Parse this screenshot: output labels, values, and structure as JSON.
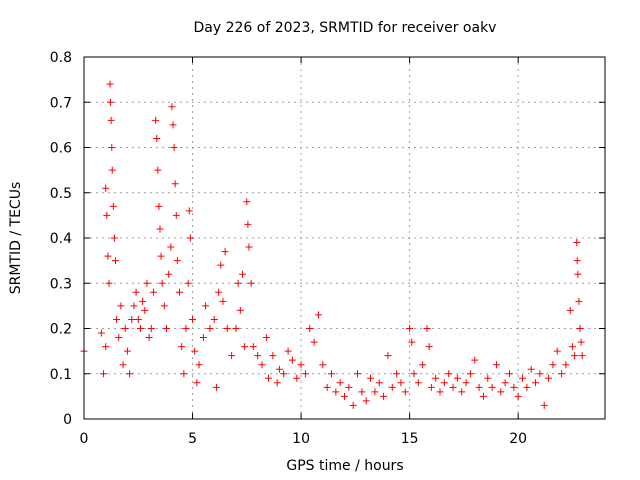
{
  "chart_data": {
    "type": "scatter",
    "title": "Day 226 of 2023, SRMTID for receiver oakv",
    "xlabel": "GPS time / hours",
    "ylabel": "SRMTID / TECUs",
    "xlim": [
      0,
      24
    ],
    "ylim": [
      0,
      0.8
    ],
    "x_ticks": [
      0,
      5,
      10,
      15,
      20
    ],
    "y_ticks": [
      0,
      0.1,
      0.2,
      0.3,
      0.4,
      0.5,
      0.6,
      0.7,
      0.8
    ],
    "x_tick_labels": [
      "0",
      "5",
      "10",
      "15",
      "20"
    ],
    "y_tick_labels": [
      "0",
      "0.1",
      "0.2",
      "0.3",
      "0.4",
      "0.5",
      "0.6",
      "0.7",
      "0.8"
    ],
    "grid": true,
    "marker": "+",
    "color": "#ff0000",
    "series": [
      {
        "name": "SRMTID",
        "points": [
          [
            0.0,
            0.15
          ],
          [
            0.8,
            0.19
          ],
          [
            0.9,
            0.1
          ],
          [
            1.0,
            0.16
          ],
          [
            1.0,
            0.51
          ],
          [
            1.05,
            0.45
          ],
          [
            1.1,
            0.36
          ],
          [
            1.15,
            0.3
          ],
          [
            1.2,
            0.74
          ],
          [
            1.22,
            0.7
          ],
          [
            1.25,
            0.66
          ],
          [
            1.28,
            0.6
          ],
          [
            1.3,
            0.55
          ],
          [
            1.35,
            0.47
          ],
          [
            1.4,
            0.4
          ],
          [
            1.45,
            0.35
          ],
          [
            1.5,
            0.22
          ],
          [
            1.6,
            0.18
          ],
          [
            1.7,
            0.25
          ],
          [
            1.8,
            0.12
          ],
          [
            1.9,
            0.2
          ],
          [
            2.0,
            0.15
          ],
          [
            2.1,
            0.1
          ],
          [
            2.2,
            0.22
          ],
          [
            2.3,
            0.25
          ],
          [
            2.4,
            0.28
          ],
          [
            2.5,
            0.22
          ],
          [
            2.6,
            0.2
          ],
          [
            2.7,
            0.26
          ],
          [
            2.8,
            0.24
          ],
          [
            2.9,
            0.3
          ],
          [
            3.0,
            0.18
          ],
          [
            3.1,
            0.2
          ],
          [
            3.2,
            0.28
          ],
          [
            3.3,
            0.66
          ],
          [
            3.35,
            0.62
          ],
          [
            3.4,
            0.55
          ],
          [
            3.45,
            0.47
          ],
          [
            3.5,
            0.42
          ],
          [
            3.55,
            0.36
          ],
          [
            3.6,
            0.3
          ],
          [
            3.7,
            0.25
          ],
          [
            3.8,
            0.2
          ],
          [
            3.9,
            0.32
          ],
          [
            4.0,
            0.38
          ],
          [
            4.05,
            0.69
          ],
          [
            4.1,
            0.65
          ],
          [
            4.15,
            0.6
          ],
          [
            4.2,
            0.52
          ],
          [
            4.25,
            0.45
          ],
          [
            4.3,
            0.35
          ],
          [
            4.4,
            0.28
          ],
          [
            4.5,
            0.16
          ],
          [
            4.6,
            0.1
          ],
          [
            4.7,
            0.2
          ],
          [
            4.8,
            0.3
          ],
          [
            4.85,
            0.46
          ],
          [
            4.9,
            0.4
          ],
          [
            5.0,
            0.22
          ],
          [
            5.1,
            0.15
          ],
          [
            5.2,
            0.08
          ],
          [
            5.3,
            0.12
          ],
          [
            5.5,
            0.18
          ],
          [
            5.6,
            0.25
          ],
          [
            5.8,
            0.2
          ],
          [
            6.0,
            0.22
          ],
          [
            6.1,
            0.07
          ],
          [
            6.2,
            0.28
          ],
          [
            6.3,
            0.34
          ],
          [
            6.4,
            0.26
          ],
          [
            6.5,
            0.37
          ],
          [
            6.6,
            0.2
          ],
          [
            6.8,
            0.14
          ],
          [
            7.0,
            0.2
          ],
          [
            7.1,
            0.3
          ],
          [
            7.2,
            0.24
          ],
          [
            7.3,
            0.32
          ],
          [
            7.4,
            0.16
          ],
          [
            7.5,
            0.48
          ],
          [
            7.55,
            0.43
          ],
          [
            7.6,
            0.38
          ],
          [
            7.7,
            0.3
          ],
          [
            7.8,
            0.16
          ],
          [
            8.0,
            0.14
          ],
          [
            8.2,
            0.12
          ],
          [
            8.4,
            0.18
          ],
          [
            8.5,
            0.09
          ],
          [
            8.7,
            0.14
          ],
          [
            8.9,
            0.08
          ],
          [
            9.0,
            0.11
          ],
          [
            9.2,
            0.1
          ],
          [
            9.4,
            0.15
          ],
          [
            9.6,
            0.13
          ],
          [
            9.8,
            0.09
          ],
          [
            10.0,
            0.12
          ],
          [
            10.2,
            0.1
          ],
          [
            10.4,
            0.2
          ],
          [
            10.6,
            0.17
          ],
          [
            10.8,
            0.23
          ],
          [
            11.0,
            0.12
          ],
          [
            11.2,
            0.07
          ],
          [
            11.4,
            0.1
          ],
          [
            11.6,
            0.06
          ],
          [
            11.8,
            0.08
          ],
          [
            12.0,
            0.05
          ],
          [
            12.2,
            0.07
          ],
          [
            12.4,
            0.03
          ],
          [
            12.6,
            0.1
          ],
          [
            12.8,
            0.06
          ],
          [
            13.0,
            0.04
          ],
          [
            13.2,
            0.09
          ],
          [
            13.4,
            0.06
          ],
          [
            13.6,
            0.08
          ],
          [
            13.8,
            0.05
          ],
          [
            14.0,
            0.14
          ],
          [
            14.2,
            0.07
          ],
          [
            14.4,
            0.1
          ],
          [
            14.6,
            0.08
          ],
          [
            14.8,
            0.06
          ],
          [
            15.0,
            0.2
          ],
          [
            15.1,
            0.17
          ],
          [
            15.2,
            0.1
          ],
          [
            15.4,
            0.08
          ],
          [
            15.6,
            0.12
          ],
          [
            15.8,
            0.2
          ],
          [
            15.9,
            0.16
          ],
          [
            16.0,
            0.07
          ],
          [
            16.2,
            0.09
          ],
          [
            16.4,
            0.06
          ],
          [
            16.6,
            0.08
          ],
          [
            16.8,
            0.1
          ],
          [
            17.0,
            0.07
          ],
          [
            17.2,
            0.09
          ],
          [
            17.4,
            0.06
          ],
          [
            17.6,
            0.08
          ],
          [
            17.8,
            0.1
          ],
          [
            18.0,
            0.13
          ],
          [
            18.2,
            0.07
          ],
          [
            18.4,
            0.05
          ],
          [
            18.6,
            0.09
          ],
          [
            18.8,
            0.07
          ],
          [
            19.0,
            0.12
          ],
          [
            19.2,
            0.06
          ],
          [
            19.4,
            0.08
          ],
          [
            19.6,
            0.1
          ],
          [
            19.8,
            0.07
          ],
          [
            20.0,
            0.05
          ],
          [
            20.2,
            0.09
          ],
          [
            20.4,
            0.07
          ],
          [
            20.6,
            0.11
          ],
          [
            20.8,
            0.08
          ],
          [
            21.0,
            0.1
          ],
          [
            21.2,
            0.03
          ],
          [
            21.4,
            0.09
          ],
          [
            21.6,
            0.12
          ],
          [
            21.8,
            0.15
          ],
          [
            22.0,
            0.1
          ],
          [
            22.2,
            0.12
          ],
          [
            22.4,
            0.24
          ],
          [
            22.5,
            0.16
          ],
          [
            22.6,
            0.14
          ],
          [
            22.7,
            0.39
          ],
          [
            22.72,
            0.35
          ],
          [
            22.75,
            0.32
          ],
          [
            22.8,
            0.26
          ],
          [
            22.85,
            0.2
          ],
          [
            22.9,
            0.17
          ],
          [
            22.95,
            0.14
          ]
        ]
      }
    ]
  }
}
